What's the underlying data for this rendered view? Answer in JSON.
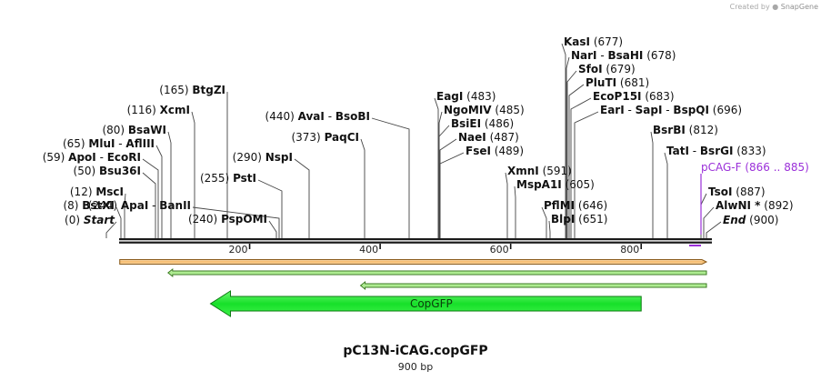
{
  "credit": {
    "created_by": "Created by",
    "brand": "SnapGene"
  },
  "map": {
    "name": "pC13N-iCAG.copGFP",
    "length_label": "900 bp",
    "length": 900,
    "ticks": [
      "200",
      "400",
      "600",
      "800"
    ],
    "sites": [
      {
        "pos": "(0)",
        "name": "Start",
        "style": "italic"
      },
      {
        "pos": "(8)",
        "name": "BstXI"
      },
      {
        "pos": "(12)",
        "name": "MscI"
      },
      {
        "pos": "(50)",
        "name": "Bsu36I"
      },
      {
        "pos": "(59)",
        "name": "ApoI",
        "name2": "EcoRI"
      },
      {
        "pos": "(65)",
        "name": "MluI",
        "name2": "AflIII"
      },
      {
        "pos": "(80)",
        "name": "BsaWI"
      },
      {
        "pos": "(116)",
        "name": "XcmI"
      },
      {
        "pos": "(165)",
        "name": "BtgZI"
      },
      {
        "pos": "(240)",
        "name": "PspOMI"
      },
      {
        "pos": "(244)",
        "name": "ApaI",
        "name2": "BanII"
      },
      {
        "pos": "(255)",
        "name": "PstI"
      },
      {
        "pos": "(290)",
        "name": "NspI"
      },
      {
        "pos": "(373)",
        "name": "PaqCI"
      },
      {
        "pos": "(440)",
        "name": "AvaI",
        "name2": "BsoBI"
      },
      {
        "pos": "(483)",
        "name": "EagI",
        "side": "right"
      },
      {
        "pos": "(485)",
        "name": "NgoMIV",
        "side": "right"
      },
      {
        "pos": "(486)",
        "name": "BsiEI",
        "side": "right"
      },
      {
        "pos": "(487)",
        "name": "NaeI",
        "side": "right"
      },
      {
        "pos": "(489)",
        "name": "FseI",
        "side": "right"
      },
      {
        "pos": "(591)",
        "name": "XmnI",
        "side": "right"
      },
      {
        "pos": "(605)",
        "name": "MspA1I",
        "side": "right"
      },
      {
        "pos": "(646)",
        "name": "PflMI",
        "side": "right"
      },
      {
        "pos": "(651)",
        "name": "BlpI",
        "side": "right"
      },
      {
        "pos": "(677)",
        "name": "KasI",
        "side": "right"
      },
      {
        "pos": "(678)",
        "name": "NarI",
        "name2": "BsaHI",
        "side": "right"
      },
      {
        "pos": "(679)",
        "name": "SfoI",
        "side": "right"
      },
      {
        "pos": "(681)",
        "name": "PluTI",
        "side": "right"
      },
      {
        "pos": "(683)",
        "name": "EcoP15I",
        "side": "right"
      },
      {
        "pos": "(696)",
        "name": "EarI",
        "name2": "SapI",
        "name3": "BspQI",
        "side": "right"
      },
      {
        "pos": "(812)",
        "name": "BsrBI",
        "side": "right"
      },
      {
        "pos": "(833)",
        "name": "TatI",
        "name2": "BsrGI",
        "side": "right"
      },
      {
        "pos": "(887)",
        "name": "TsoI",
        "side": "right"
      },
      {
        "pos": "(892)",
        "name": "AlwNI *",
        "side": "right"
      },
      {
        "pos": "(900)",
        "name": "End",
        "side": "right",
        "style": "italic"
      }
    ],
    "primer": {
      "name": "pCAG-F",
      "range": "(866 .. 885)",
      "color": "#9b30d9"
    },
    "features": [
      {
        "name": "",
        "start": 1,
        "end": 900,
        "direction": "forward",
        "fill": "#f7c58a",
        "stroke": "#8a5a1a"
      },
      {
        "name": "",
        "start": 75,
        "end": 900,
        "direction": "reverse",
        "fill": "#b9f0a0",
        "stroke": "#3a7a20"
      },
      {
        "name": "",
        "start": 370,
        "end": 900,
        "direction": "reverse",
        "fill": "#b9f0a0",
        "stroke": "#3a7a20"
      },
      {
        "name": "CopGFP",
        "start": 140,
        "end": 800,
        "direction": "reverse",
        "fill": "#22e830",
        "stroke": "#0c7a12"
      }
    ],
    "colors": {
      "backbone": "#1a1a1a",
      "leader": "#444444",
      "label": "#111111"
    }
  }
}
